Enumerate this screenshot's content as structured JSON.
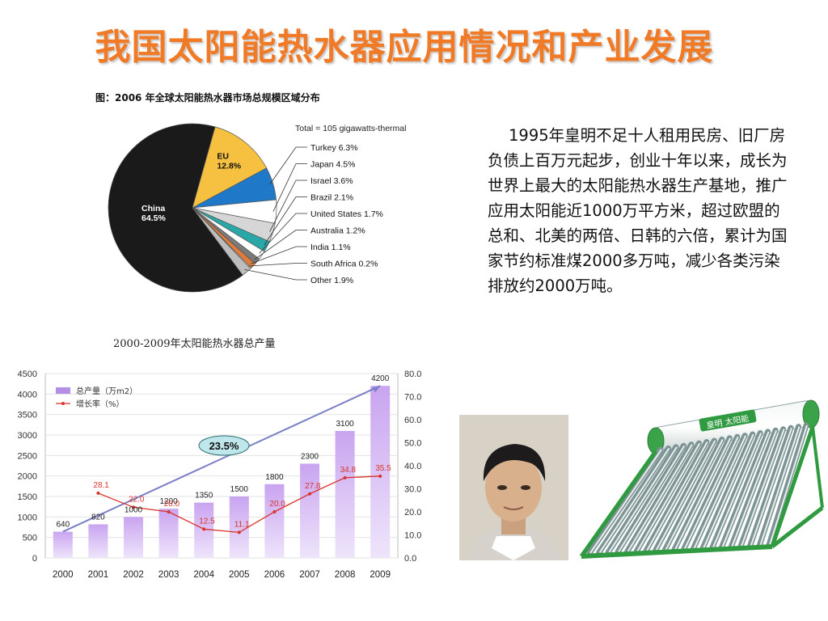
{
  "title": "我国太阳能热水器应用情况和产业发展",
  "paragraph": "1995年皇明不足十人租用民房、旧厂房负债上百万元起步，创业十年以来，成长为世界上最大的太阳能热水器生产基地，推广应用太阳能近1000万平方米，超过欧盟的总和、北美的两倍、日韩的六倍，累计为国家节约标准煤2000多万吨，减少各类污染排放约2000万吨。",
  "product_logo": "皇明 太阳能",
  "chart_data": [
    {
      "type": "pie",
      "title": "图：2006 年全球太阳能热水器市场总规模区域分布",
      "total_label": "Total = 105 gigawatts-thermal",
      "slices": [
        {
          "name": "China",
          "value": 64.5,
          "label": "64.5%",
          "color": "#1a1a1a"
        },
        {
          "name": "EU",
          "value": 12.8,
          "label": "12.8%",
          "color": "#f6c141"
        },
        {
          "name": "Turkey",
          "value": 6.3,
          "label": "6.3%",
          "color": "#1f78c8"
        },
        {
          "name": "Japan",
          "value": 4.5,
          "label": "4.5%",
          "color": "#ffffff"
        },
        {
          "name": "Israel",
          "value": 3.6,
          "label": "3.6%",
          "color": "#d6d6d6"
        },
        {
          "name": "Brazil",
          "value": 2.1,
          "label": "2.1%",
          "color": "#2aa7a7"
        },
        {
          "name": "United States",
          "value": 1.7,
          "label": "1.7%",
          "color": "#ffffff"
        },
        {
          "name": "Australia",
          "value": 1.2,
          "label": "1.2%",
          "color": "#7a7a7a"
        },
        {
          "name": "India",
          "value": 1.1,
          "label": "1.1%",
          "color": "#e07b39"
        },
        {
          "name": "South Africa",
          "value": 0.2,
          "label": "0.2%",
          "color": "#ffffff"
        },
        {
          "name": "Other",
          "value": 1.9,
          "label": "1.9%",
          "color": "#bdbdbd"
        }
      ]
    },
    {
      "type": "bar",
      "title": "2000-2009年太阳能热水器总产量",
      "categories": [
        "2000",
        "2001",
        "2002",
        "2003",
        "2004",
        "2005",
        "2006",
        "2007",
        "2008",
        "2009"
      ],
      "series": [
        {
          "name": "总产量（万m2）",
          "type": "bar",
          "axis": "left",
          "values": [
            640,
            820,
            1000,
            1200,
            1350,
            1500,
            1800,
            2300,
            3100,
            4200
          ]
        },
        {
          "name": "增长率（%）",
          "type": "line",
          "axis": "right",
          "values": [
            null,
            28.1,
            22.0,
            20.0,
            12.5,
            11.1,
            20.0,
            27.8,
            34.8,
            35.5
          ]
        }
      ],
      "y_left": {
        "min": 0,
        "max": 4500,
        "ticks": [
          0,
          500,
          1000,
          1500,
          2000,
          2500,
          3000,
          3500,
          4000,
          4500
        ]
      },
      "y_right": {
        "min": 0,
        "max": 80,
        "ticks": [
          "0.0",
          "10.0",
          "20.0",
          "30.0",
          "40.0",
          "50.0",
          "60.0",
          "70.0",
          "80.0"
        ]
      },
      "annotation": "23.5%",
      "trend_line": {
        "from": 640,
        "to": 4200
      },
      "colors": {
        "bar_top": "#c9a4f0",
        "bar_bottom": "#e9dcfa",
        "line": "#d9342b",
        "trend": "#7b7fc8",
        "callout_fill": "#bfe6ea"
      }
    }
  ]
}
